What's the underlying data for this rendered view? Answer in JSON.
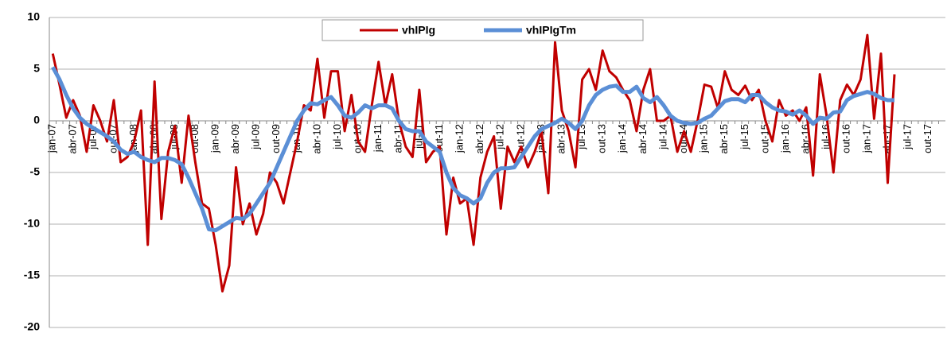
{
  "chart_data": {
    "type": "line",
    "categories": [
      "jan-07",
      null,
      null,
      "abr-07",
      null,
      null,
      "jul-07",
      null,
      null,
      "out-07",
      null,
      null,
      "jan-08",
      null,
      null,
      "abr-08",
      null,
      null,
      "jul-08",
      null,
      null,
      "out-08",
      null,
      null,
      "jan-09",
      null,
      null,
      "abr-09",
      null,
      null,
      "jul-09",
      null,
      null,
      "out-09",
      null,
      null,
      "jan-10",
      null,
      null,
      "abr-10",
      null,
      null,
      "jul-10",
      null,
      null,
      "out-10",
      null,
      null,
      "jan-11",
      null,
      null,
      "abr-11",
      null,
      null,
      "jul-11",
      null,
      null,
      "out-11",
      null,
      null,
      "jan-12",
      null,
      null,
      "abr-12",
      null,
      null,
      "jul-12",
      null,
      null,
      "out-12",
      null,
      null,
      "jan-13",
      null,
      null,
      "abr-13",
      null,
      null,
      "jul-13",
      null,
      null,
      "out-13",
      null,
      null,
      "jan-14",
      null,
      null,
      "abr-14",
      null,
      null,
      "jul-14",
      null,
      null,
      "out-14",
      null,
      null,
      "jan-15",
      null,
      null,
      "abr-15",
      null,
      null,
      "jul-15",
      null,
      null,
      "out-15",
      null,
      null,
      "jan-16",
      null,
      null,
      "abr-16",
      null,
      null,
      "jul-16",
      null,
      null,
      "out-16",
      null,
      null,
      "jan-17",
      null,
      null,
      "abr-17",
      null,
      null,
      "jul-17",
      null,
      null,
      "out-17",
      null,
      null
    ],
    "series": [
      {
        "name": "vhIPIg",
        "color": "#c00000",
        "width": 3,
        "values": [
          6.5,
          3.5,
          0.3,
          2,
          0.5,
          -3,
          1.5,
          0,
          -2,
          2,
          -4,
          -3.5,
          -2,
          1,
          -12,
          3.8,
          -9.5,
          -3,
          -0.5,
          -6,
          0.5,
          -4,
          -8,
          -8.5,
          -12,
          -16.5,
          -14,
          -4.5,
          -10,
          -8,
          -11,
          -9,
          -5,
          -6,
          -8,
          -5,
          -2,
          1.5,
          1,
          6,
          0.3,
          4.8,
          4.8,
          -1,
          2.5,
          -2,
          -3,
          1.5,
          5.7,
          1.5,
          4.5,
          0,
          -2.5,
          -3.5,
          3,
          -4,
          -3,
          -2.5,
          -11,
          -5.5,
          -8,
          -7.5,
          -12,
          -5.5,
          -3,
          -1.5,
          -8.5,
          -2.5,
          -4,
          -2.5,
          -4.5,
          -3,
          -1,
          -7,
          7.6,
          1,
          -1,
          -4.5,
          4,
          5,
          3,
          6.8,
          4.8,
          4.2,
          3,
          2,
          -1,
          3,
          5,
          0,
          0,
          0.5,
          -3,
          -1,
          -3,
          0,
          3.5,
          3.3,
          1.2,
          4.8,
          3,
          2.5,
          3.4,
          2,
          3,
          0,
          -2,
          2,
          0.5,
          1,
          0,
          1.3,
          -5.3,
          4.5,
          0.5,
          -5,
          2,
          3.5,
          2.5,
          4,
          8.3,
          0.2,
          6.5,
          -6,
          4.5,
          null,
          null,
          null,
          null,
          null,
          null,
          null
        ]
      },
      {
        "name": "vhIPIgTm",
        "color": "#5b8fd6",
        "width": 5,
        "values": [
          5.2,
          4,
          2.5,
          1.2,
          0.3,
          -0.3,
          -0.7,
          -1.1,
          -1.5,
          -2,
          -2.8,
          -3.2,
          -3,
          -3.5,
          -3.8,
          -4,
          -3.6,
          -3.6,
          -3.8,
          -4.2,
          -5.5,
          -7,
          -8.5,
          -10.5,
          -10.6,
          -10.2,
          -9.8,
          -9.4,
          -9.5,
          -9,
          -8,
          -7,
          -6,
          -4.5,
          -3,
          -1.5,
          0,
          1,
          1.7,
          1.6,
          2,
          2.3,
          1.5,
          0.5,
          0.3,
          0.8,
          1.5,
          1.2,
          1.5,
          1.5,
          1.2,
          0,
          -0.8,
          -1,
          -1,
          -2,
          -2.5,
          -3,
          -5,
          -6.5,
          -7.2,
          -7.5,
          -8,
          -7.5,
          -6,
          -5,
          -4.6,
          -4.6,
          -4.5,
          -3.5,
          -2.5,
          -1.5,
          -0.8,
          -0.5,
          -0.2,
          0.2,
          -0.2,
          -0.8,
          0,
          1.5,
          2.5,
          3,
          3.3,
          3.4,
          2.8,
          2.8,
          3.3,
          2.2,
          1.8,
          2.3,
          1.5,
          0.5,
          0,
          -0.2,
          -0.3,
          -0.2,
          0.2,
          0.5,
          1.2,
          1.9,
          2.1,
          2.1,
          1.8,
          2.5,
          2.5,
          1.8,
          1.3,
          1,
          0.9,
          0.6,
          1,
          0.5,
          -0.3,
          0.3,
          0.2,
          0.8,
          0.9,
          2,
          2.4,
          2.6,
          2.8,
          2.6,
          2.2,
          2,
          2,
          null,
          null,
          null,
          null,
          null,
          null,
          null
        ]
      }
    ],
    "ylim": [
      -20,
      10
    ],
    "yticks": [
      -20,
      -15,
      -10,
      -5,
      0,
      5,
      10
    ],
    "grid": true,
    "legend": "top"
  }
}
